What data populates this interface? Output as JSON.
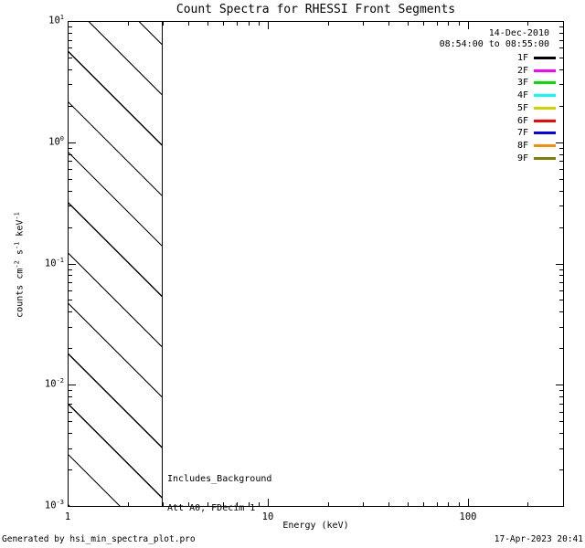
{
  "title": "Count Spectra for RHESSI Front Segments",
  "observation": {
    "date": "14-Dec-2010",
    "time_range": "08:54:00 to 08:55:00"
  },
  "legend": {
    "entries": [
      {
        "label": "1F",
        "color": "#000000"
      },
      {
        "label": "2F",
        "color": "#ff00ff"
      },
      {
        "label": "3F",
        "color": "#00e100"
      },
      {
        "label": "4F",
        "color": "#00ffff"
      },
      {
        "label": "5F",
        "color": "#d2d200"
      },
      {
        "label": "6F",
        "color": "#ff0000"
      },
      {
        "label": "7F",
        "color": "#0000ff"
      },
      {
        "label": "8F",
        "color": "#ff8c00"
      },
      {
        "label": "9F",
        "color": "#808000"
      }
    ]
  },
  "annotations": {
    "background_note": "Includes_Background",
    "attenuator_note": "Att A0, FDecim 1"
  },
  "axes": {
    "x_label": "Energy (keV)",
    "y_label_parts": {
      "p0": "counts cm",
      "s0": "-2",
      "p1": " s",
      "s1": "-1",
      "p2": " keV",
      "s2": "-1"
    }
  },
  "footer": {
    "generated_by": "Generated by hsi_min_spectra_plot.pro",
    "timestamp": "17-Apr-2023 20:41"
  },
  "chart_data": {
    "type": "line",
    "title": "Count Spectra for RHESSI Front Segments",
    "xlabel": "Energy (keV)",
    "ylabel": "counts cm^-2 s^-1 keV^-1",
    "x_axis": {
      "scale": "log",
      "range": [
        1,
        300
      ],
      "major_ticks": [
        1,
        10,
        100
      ],
      "tick_labels": [
        "1",
        "10",
        "100"
      ]
    },
    "y_axis": {
      "scale": "log",
      "range": [
        0.001,
        10
      ],
      "tick_base": "10",
      "major_tick_exponents": [
        1,
        0,
        -1,
        -2,
        -3
      ]
    },
    "series": [],
    "hatched_region": {
      "x_range": [
        1,
        3
      ],
      "style": "45-degree diagonal hatch"
    },
    "legend_position": "top-right",
    "grid": false,
    "notes": "Plot area contains no spectra curves; only the 1-3 keV hatched exclusion band is drawn."
  }
}
